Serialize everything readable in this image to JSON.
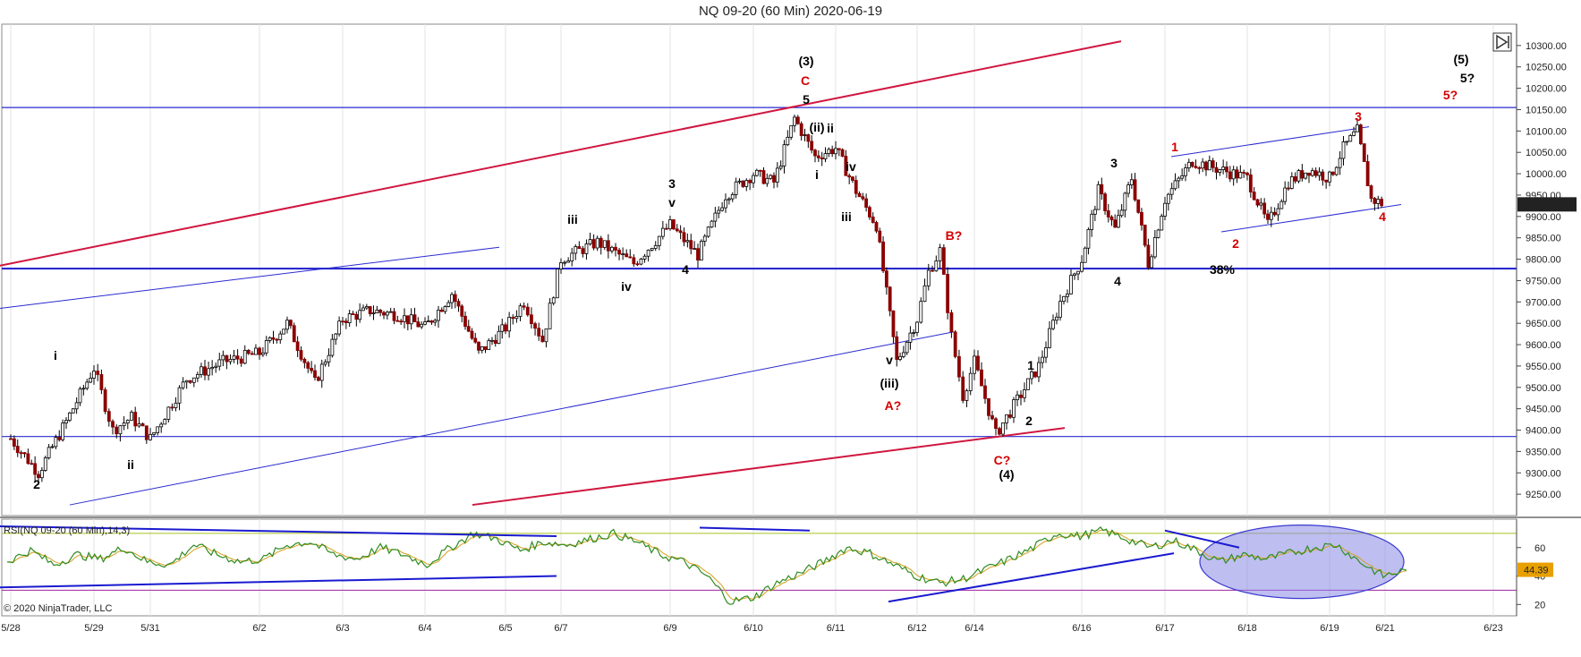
{
  "chart_data": {
    "type": "line",
    "title": "NQ 09-20 (60 Min)  2020-06-19",
    "instrument": "NQ 09-20",
    "timeframe": "60 Min",
    "ylim": [
      9200,
      10350
    ],
    "y_ticks": [
      9250,
      9300,
      9350,
      9400,
      9450,
      9500,
      9550,
      9600,
      9650,
      9700,
      9750,
      9800,
      9850,
      9900,
      9950,
      10000,
      10050,
      10100,
      10150,
      10200,
      10250,
      10300
    ],
    "y_tick_labels": [
      "9250.00",
      "9300.00",
      "9350.00",
      "9400.00",
      "9450.00",
      "9500.00",
      "9550.00",
      "9600.00",
      "9650.00",
      "9700.00",
      "9750.00",
      "9800.00",
      "9850.00",
      "9900.00",
      "9950.00",
      "10000.00",
      "10050.00",
      "10100.00",
      "10150.00",
      "10200.00",
      "10250.00",
      "10300.00"
    ],
    "x_tick_labels": [
      "5/28",
      "5/29",
      "5/31",
      "6/2",
      "6/3",
      "6/4",
      "6/5",
      "6/7",
      "6/9",
      "6/10",
      "6/11",
      "6/12",
      "6/14",
      "6/16",
      "6/17",
      "6/18",
      "6/19",
      "6/21",
      "6/23"
    ],
    "last_price": "9928.25",
    "horizontal_levels": [
      10155,
      9778,
      9385
    ],
    "price_series": [
      {
        "x": "5/28",
        "y": 9380
      },
      {
        "x": "5/28",
        "y": 9300
      },
      {
        "x": "5/28",
        "y": 9420
      },
      {
        "x": "5/29",
        "y": 9545
      },
      {
        "x": "5/29",
        "y": 9400
      },
      {
        "x": "5/29",
        "y": 9430
      },
      {
        "x": "5/31",
        "y": 9380
      },
      {
        "x": "5/31",
        "y": 9520
      },
      {
        "x": "5/31",
        "y": 9560
      },
      {
        "x": "6/2",
        "y": 9580
      },
      {
        "x": "6/2",
        "y": 9650
      },
      {
        "x": "6/2",
        "y": 9510
      },
      {
        "x": "6/3",
        "y": 9660
      },
      {
        "x": "6/3",
        "y": 9680
      },
      {
        "x": "6/3",
        "y": 9670
      },
      {
        "x": "6/4",
        "y": 9640
      },
      {
        "x": "6/4",
        "y": 9720
      },
      {
        "x": "6/4",
        "y": 9580
      },
      {
        "x": "6/5",
        "y": 9640
      },
      {
        "x": "6/5",
        "y": 9700
      },
      {
        "x": "6/5",
        "y": 9610
      },
      {
        "x": "6/7",
        "y": 9800
      },
      {
        "x": "6/7",
        "y": 9840
      },
      {
        "x": "6/7",
        "y": 9790
      },
      {
        "x": "6/9",
        "y": 9880
      },
      {
        "x": "6/9",
        "y": 9810
      },
      {
        "x": "6/9",
        "y": 9950
      },
      {
        "x": "6/10",
        "y": 10000
      },
      {
        "x": "6/10",
        "y": 9980
      },
      {
        "x": "6/10",
        "y": 10130
      },
      {
        "x": "6/10",
        "y": 10040
      },
      {
        "x": "6/11",
        "y": 10060
      },
      {
        "x": "6/11",
        "y": 9960
      },
      {
        "x": "6/11",
        "y": 9880
      },
      {
        "x": "6/11",
        "y": 9560
      },
      {
        "x": "6/12",
        "y": 9660
      },
      {
        "x": "6/12",
        "y": 9770
      },
      {
        "x": "6/12",
        "y": 9820
      },
      {
        "x": "6/12",
        "y": 9620
      },
      {
        "x": "6/12",
        "y": 9480
      },
      {
        "x": "6/14",
        "y": 9560
      },
      {
        "x": "6/14",
        "y": 9390
      },
      {
        "x": "6/14",
        "y": 9470
      },
      {
        "x": "6/14",
        "y": 9550
      },
      {
        "x": "6/14",
        "y": 9700
      },
      {
        "x": "6/16",
        "y": 9800
      },
      {
        "x": "6/16",
        "y": 9960
      },
      {
        "x": "6/16",
        "y": 9870
      },
      {
        "x": "6/16",
        "y": 9990
      },
      {
        "x": "6/16",
        "y": 9790
      },
      {
        "x": "6/17",
        "y": 9940
      },
      {
        "x": "6/17",
        "y": 10030
      },
      {
        "x": "6/17",
        "y": 10010
      },
      {
        "x": "6/18",
        "y": 9990
      },
      {
        "x": "6/18",
        "y": 9880
      },
      {
        "x": "6/18",
        "y": 9980
      },
      {
        "x": "6/18",
        "y": 10010
      },
      {
        "x": "6/19",
        "y": 9990
      },
      {
        "x": "6/19",
        "y": 10060
      },
      {
        "x": "6/19",
        "y": 10100
      },
      {
        "x": "6/19",
        "y": 9940
      },
      {
        "x": "6/21",
        "y": 9928.25
      }
    ],
    "rsi": {
      "label": "RSI(NQ 09-20 (60 Min),14,3)",
      "y_ticks": [
        20,
        40,
        60
      ],
      "current": "44.39",
      "upper_level": 70,
      "lower_level": 30,
      "series": [
        50,
        58,
        48,
        55,
        52,
        60,
        50,
        48,
        62,
        55,
        50,
        52,
        62,
        64,
        55,
        52,
        60,
        55,
        48,
        60,
        70,
        66,
        58,
        64,
        62,
        66,
        70,
        64,
        55,
        50,
        40,
        22,
        25,
        35,
        42,
        50,
        60,
        56,
        48,
        40,
        35,
        38,
        45,
        52,
        60,
        70,
        68,
        72,
        66,
        60,
        65,
        58,
        50,
        55,
        52,
        56,
        60,
        62,
        50,
        40,
        44
      ]
    },
    "wave_labels": [
      {
        "text": "i",
        "color": "#000000"
      },
      {
        "text": "2",
        "color": "#000000"
      },
      {
        "text": "ii",
        "color": "#000000"
      },
      {
        "text": "iii",
        "color": "#000000"
      },
      {
        "text": "iv",
        "color": "#000000"
      },
      {
        "text": "3",
        "color": "#000000"
      },
      {
        "text": "v",
        "color": "#000000"
      },
      {
        "text": "4",
        "color": "#000000"
      },
      {
        "text": "(3)",
        "color": "#000000"
      },
      {
        "text": "C",
        "color": "#d40000"
      },
      {
        "text": "5",
        "color": "#000000"
      },
      {
        "text": "(ii)",
        "color": "#000000"
      },
      {
        "text": "ii",
        "color": "#000000"
      },
      {
        "text": "i",
        "color": "#000000"
      },
      {
        "text": "iv",
        "color": "#000000"
      },
      {
        "text": "iii",
        "color": "#000000"
      },
      {
        "text": "v",
        "color": "#000000"
      },
      {
        "text": "(iii)",
        "color": "#000000"
      },
      {
        "text": "A?",
        "color": "#d40000"
      },
      {
        "text": "B?",
        "color": "#d40000"
      },
      {
        "text": "1",
        "color": "#000000"
      },
      {
        "text": "2",
        "color": "#000000"
      },
      {
        "text": "C?",
        "color": "#d40000"
      },
      {
        "text": "(4)",
        "color": "#000000"
      },
      {
        "text": "3",
        "color": "#000000"
      },
      {
        "text": "4",
        "color": "#000000"
      },
      {
        "text": "38%",
        "color": "#000000"
      },
      {
        "text": "1",
        "color": "#d40000"
      },
      {
        "text": "2",
        "color": "#d40000"
      },
      {
        "text": "3",
        "color": "#d40000"
      },
      {
        "text": "4",
        "color": "#d40000"
      },
      {
        "text": "(5)",
        "color": "#000000"
      },
      {
        "text": "5?",
        "color": "#000000"
      },
      {
        "text": "5?",
        "color": "#d40000"
      }
    ],
    "copyright": "© 2020 NinjaTrader, LLC",
    "colors": {
      "price_up": "#000000",
      "price_down": "#8b0000",
      "channel_red": "#d0173f",
      "channel_blue": "#2a2ad0",
      "rsi_line": "#2e8b20",
      "rsi_signal": "#d4a020",
      "ellipse_fill": "#8888e6"
    }
  }
}
